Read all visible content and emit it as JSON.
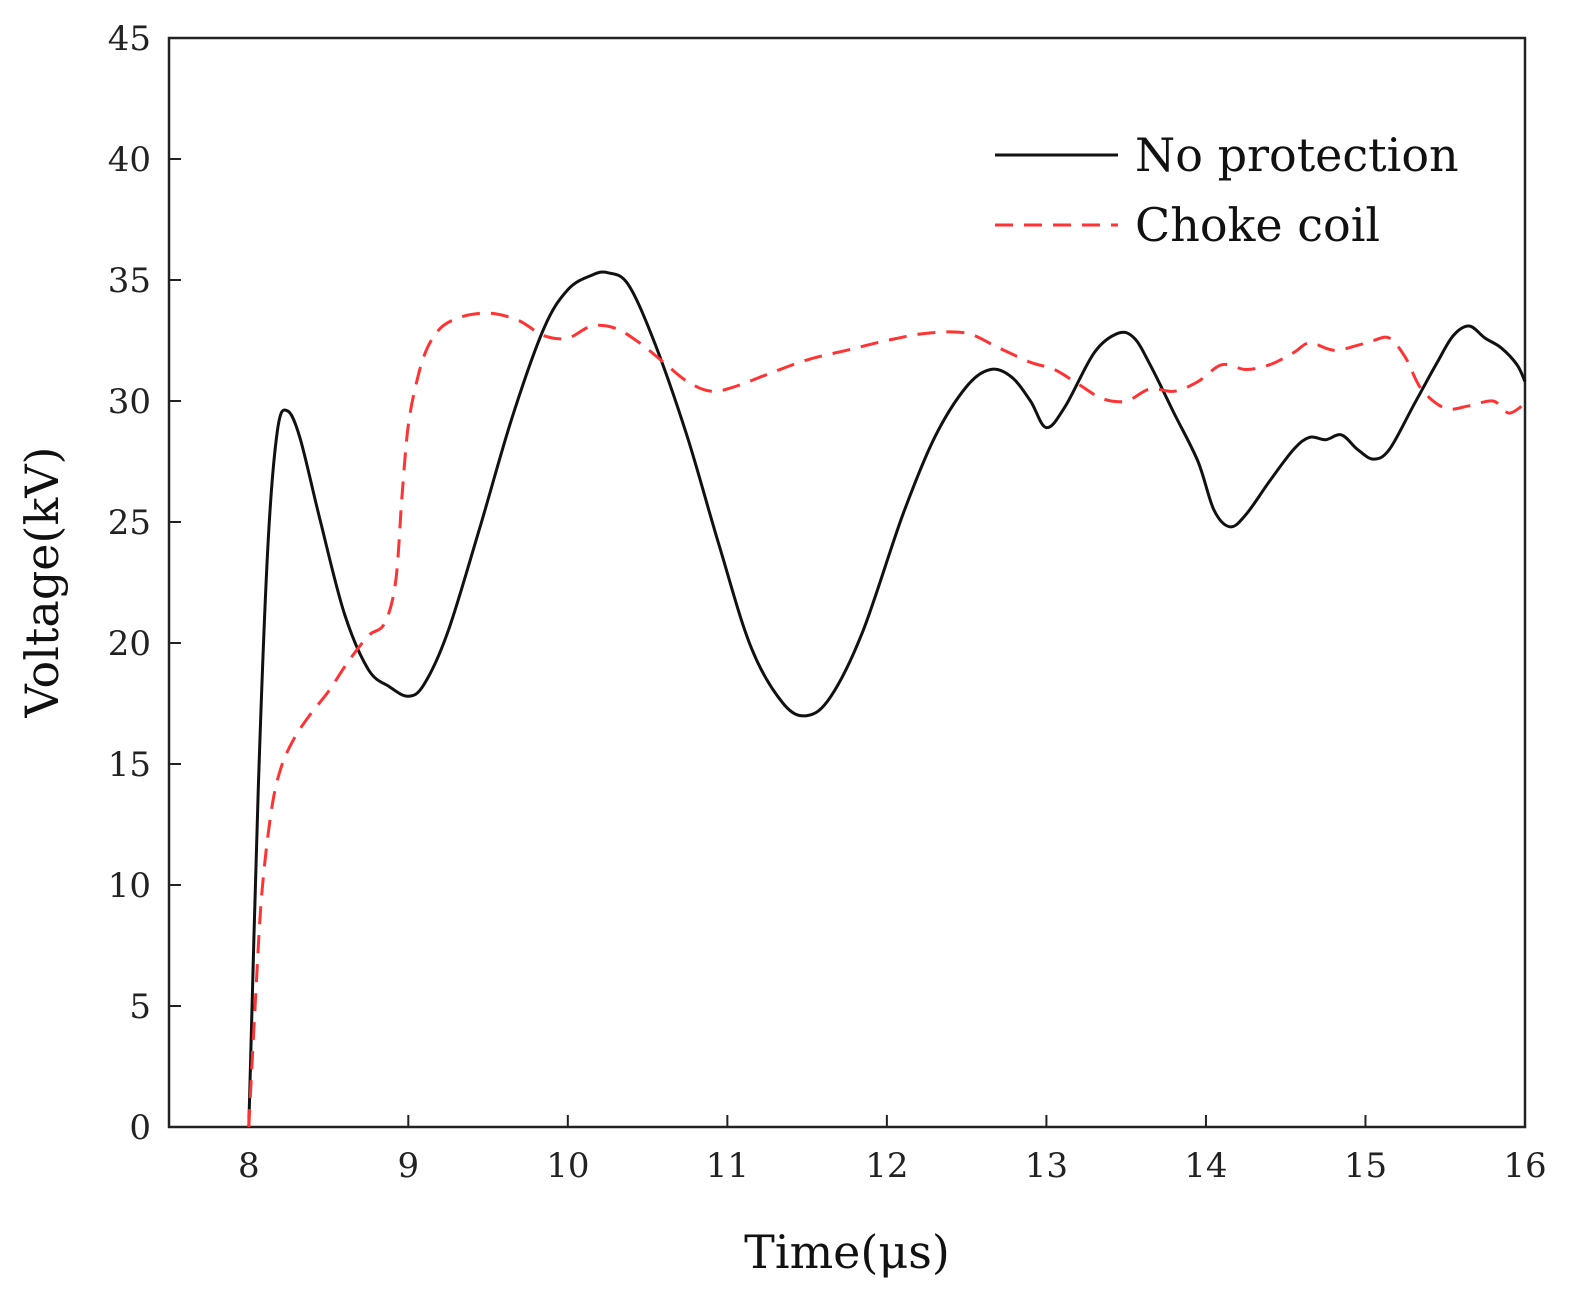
{
  "chart_data": {
    "type": "line",
    "title": "",
    "xlabel": "Time(μs)",
    "ylabel": "Voltage(kV)",
    "xlim": [
      7.5,
      16
    ],
    "ylim": [
      0,
      45
    ],
    "xticks": [
      "8",
      "9",
      "10",
      "11",
      "12",
      "13",
      "14",
      "15",
      "16"
    ],
    "yticks": [
      "0",
      "5",
      "10",
      "15",
      "20",
      "25",
      "30",
      "35",
      "40",
      "45"
    ],
    "grid": false,
    "legend_position": "top-right",
    "series": [
      {
        "name": "No protection",
        "color": "#111111",
        "style": "solid",
        "x": [
          8.0,
          8.06,
          8.12,
          8.18,
          8.24,
          8.32,
          8.45,
          8.6,
          8.75,
          8.88,
          9.0,
          9.1,
          9.25,
          9.45,
          9.65,
          9.85,
          10.0,
          10.15,
          10.25,
          10.38,
          10.55,
          10.75,
          10.95,
          11.15,
          11.35,
          11.5,
          11.65,
          11.85,
          12.1,
          12.3,
          12.5,
          12.65,
          12.78,
          12.9,
          13.0,
          13.12,
          13.3,
          13.45,
          13.55,
          13.65,
          13.8,
          13.95,
          14.05,
          14.15,
          14.25,
          14.4,
          14.55,
          14.65,
          14.75,
          14.85,
          14.95,
          15.05,
          15.15,
          15.3,
          15.45,
          15.55,
          15.65,
          15.75,
          15.85,
          15.95,
          16.0
        ],
        "y": [
          0.0,
          14.0,
          24.0,
          28.8,
          29.6,
          28.5,
          25.0,
          21.2,
          18.9,
          18.2,
          17.8,
          18.3,
          20.5,
          24.8,
          29.3,
          33.0,
          34.6,
          35.2,
          35.3,
          34.8,
          32.3,
          28.5,
          24.0,
          19.8,
          17.5,
          17.0,
          17.8,
          20.5,
          25.3,
          28.5,
          30.6,
          31.3,
          31.0,
          30.0,
          28.9,
          29.8,
          32.0,
          32.8,
          32.6,
          31.5,
          29.5,
          27.5,
          25.5,
          24.8,
          25.3,
          26.7,
          28.0,
          28.5,
          28.4,
          28.6,
          28.0,
          27.6,
          28.0,
          29.8,
          31.6,
          32.7,
          33.1,
          32.6,
          32.2,
          31.5,
          30.8
        ]
      },
      {
        "name": "Choke coil",
        "color": "#ff3333",
        "style": "dashed",
        "x": [
          8.0,
          8.04,
          8.08,
          8.14,
          8.2,
          8.28,
          8.38,
          8.5,
          8.62,
          8.75,
          8.85,
          8.92,
          8.96,
          9.0,
          9.06,
          9.12,
          9.2,
          9.3,
          9.42,
          9.55,
          9.7,
          9.85,
          10.0,
          10.15,
          10.3,
          10.45,
          10.6,
          10.75,
          10.9,
          11.05,
          11.25,
          11.5,
          11.75,
          12.0,
          12.25,
          12.5,
          12.7,
          12.9,
          13.05,
          13.2,
          13.35,
          13.5,
          13.65,
          13.8,
          13.95,
          14.1,
          14.25,
          14.4,
          14.55,
          14.65,
          14.8,
          14.95,
          15.05,
          15.15,
          15.25,
          15.35,
          15.5,
          15.65,
          15.8,
          15.9,
          16.0
        ],
        "y": [
          0.0,
          5.0,
          9.5,
          13.0,
          14.8,
          16.0,
          17.0,
          18.0,
          19.2,
          20.3,
          20.8,
          22.5,
          26.0,
          29.0,
          31.0,
          32.2,
          33.0,
          33.4,
          33.6,
          33.6,
          33.3,
          32.7,
          32.6,
          33.1,
          33.0,
          32.4,
          31.6,
          30.8,
          30.4,
          30.6,
          31.1,
          31.7,
          32.1,
          32.5,
          32.8,
          32.8,
          32.2,
          31.6,
          31.3,
          30.7,
          30.1,
          30.0,
          30.5,
          30.4,
          30.8,
          31.5,
          31.3,
          31.5,
          32.0,
          32.4,
          32.1,
          32.3,
          32.5,
          32.6,
          31.8,
          30.5,
          29.7,
          29.8,
          30.0,
          29.5,
          29.9
        ]
      }
    ]
  }
}
